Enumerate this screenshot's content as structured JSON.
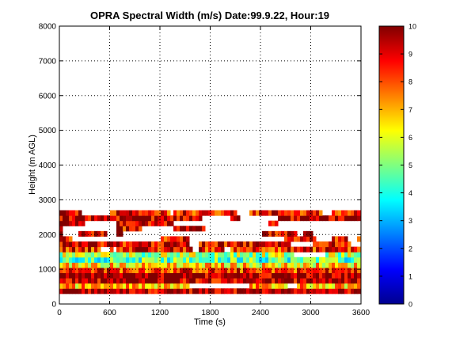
{
  "chart_data": {
    "type": "heatmap",
    "title": "OPRA Spectral Width (m/s)  Date:99.9.22, Hour:19",
    "xlabel": "Time (s)",
    "ylabel": "Height (m AGL)",
    "xlim": [
      0,
      3600
    ],
    "ylim": [
      0,
      8000
    ],
    "x_ticks": [
      "0",
      "600",
      "1200",
      "1800",
      "2400",
      "3000",
      "3600"
    ],
    "y_ticks": [
      "0",
      "1000",
      "2000",
      "3000",
      "4000",
      "5000",
      "6000",
      "7000",
      "8000"
    ],
    "grid": true,
    "colormap": "jet",
    "colorbar": {
      "range": [
        0,
        10
      ],
      "ticks": [
        "0",
        "1",
        "2",
        "3",
        "4",
        "5",
        "6",
        "7",
        "8",
        "9",
        "10"
      ]
    },
    "data_extent_m": [
      300,
      2700
    ],
    "height_bands": [
      {
        "bottom_m": 300,
        "top_m": 450,
        "width_ms": 9.6,
        "coverage": 0.97
      },
      {
        "bottom_m": 450,
        "top_m": 600,
        "width_ms": 7.0,
        "coverage": 0.95
      },
      {
        "bottom_m": 600,
        "top_m": 750,
        "width_ms": 9.4,
        "coverage": 0.96
      },
      {
        "bottom_m": 750,
        "top_m": 900,
        "width_ms": 9.7,
        "coverage": 0.97
      },
      {
        "bottom_m": 900,
        "top_m": 1050,
        "width_ms": 8.4,
        "coverage": 0.95
      },
      {
        "bottom_m": 1050,
        "top_m": 1200,
        "width_ms": 6.6,
        "coverage": 0.95
      },
      {
        "bottom_m": 1200,
        "top_m": 1350,
        "width_ms": 4.6,
        "coverage": 0.95
      },
      {
        "bottom_m": 1350,
        "top_m": 1500,
        "width_ms": 5.4,
        "coverage": 0.93
      },
      {
        "bottom_m": 1500,
        "top_m": 1650,
        "width_ms": 8.6,
        "coverage": 0.85
      },
      {
        "bottom_m": 1650,
        "top_m": 1800,
        "width_ms": 9.0,
        "coverage": 0.55
      },
      {
        "bottom_m": 1800,
        "top_m": 1950,
        "width_ms": 8.8,
        "coverage": 0.35
      },
      {
        "bottom_m": 1950,
        "top_m": 2100,
        "width_ms": 9.2,
        "coverage": 0.35
      },
      {
        "bottom_m": 2100,
        "top_m": 2250,
        "width_ms": 9.0,
        "coverage": 0.3
      },
      {
        "bottom_m": 2250,
        "top_m": 2400,
        "width_ms": 9.3,
        "coverage": 0.45
      },
      {
        "bottom_m": 2400,
        "top_m": 2550,
        "width_ms": 9.4,
        "coverage": 0.75
      },
      {
        "bottom_m": 2550,
        "top_m": 2700,
        "width_ms": 8.7,
        "coverage": 0.85
      }
    ]
  }
}
